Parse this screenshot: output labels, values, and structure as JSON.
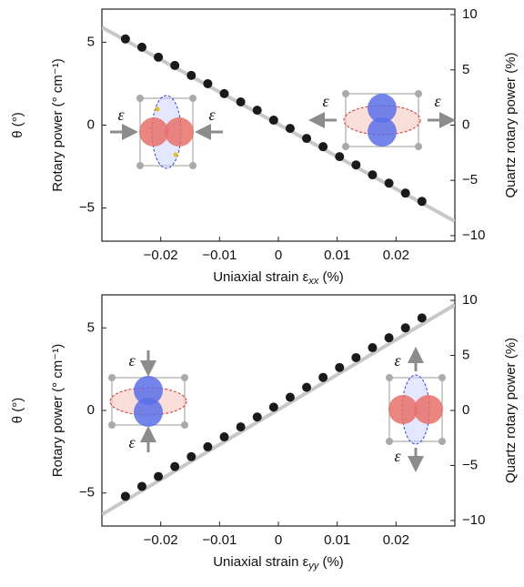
{
  "chart_data": [
    {
      "type": "scatter",
      "xlabel": [
        "Uniaxial strain ε",
        "xx",
        " (%)"
      ],
      "ylabel": "Rotary power (° cm⁻¹)",
      "y2label": "Quartz rotary power (%)",
      "outer_ylabel": "θ (°)",
      "annotations": [
        "ε",
        "ε",
        "ε",
        "ε"
      ],
      "color": "#1a1a1a",
      "x": [
        -0.026,
        -0.0232,
        -0.0204,
        -0.0176,
        -0.0148,
        -0.012,
        -0.0092,
        -0.0064,
        -0.0036,
        -0.0008,
        0.002,
        0.0048,
        0.0076,
        0.0104,
        0.0132,
        0.016,
        0.0188,
        0.0216,
        0.0244
      ],
      "values": [
        5.2,
        4.7,
        4.1,
        3.6,
        3.0,
        2.5,
        1.9,
        1.4,
        0.9,
        0.3,
        -0.2,
        -0.8,
        -1.3,
        -1.9,
        -2.4,
        -3.0,
        -3.5,
        -4.1,
        -4.6
      ],
      "fit": {
        "color": "#c8c8c8",
        "x": [
          -0.03,
          0.03
        ],
        "values": [
          5.9,
          -5.8
        ]
      },
      "xlim": [
        -0.03,
        0.03
      ],
      "xticks": [
        {
          "value": -0.02,
          "label": "−0.02"
        },
        {
          "value": -0.01,
          "label": "−0.01"
        },
        0,
        0.01,
        0.02
      ],
      "ylim": [
        -7,
        7
      ],
      "yticks": [
        {
          "value": -5,
          "label": "−5"
        },
        0,
        5
      ],
      "y2lim": [
        -10.5,
        10.5
      ],
      "y2ticks": [
        {
          "value": -10,
          "label": "−10"
        },
        {
          "value": -5,
          "label": "−5"
        },
        0,
        5,
        10
      ]
    },
    {
      "type": "scatter",
      "xlabel": [
        "Uniaxial strain ε",
        "yy",
        " (%)"
      ],
      "ylabel": "Rotary power (° cm⁻¹)",
      "y2label": "Quartz rotary power (%)",
      "outer_ylabel": "θ (°)",
      "annotations": [
        "ε",
        "ε",
        "ε",
        "ε"
      ],
      "color": "#1a1a1a",
      "x": [
        -0.026,
        -0.0232,
        -0.0204,
        -0.0176,
        -0.0148,
        -0.012,
        -0.0092,
        -0.0064,
        -0.0036,
        -0.0008,
        0.002,
        0.0048,
        0.0076,
        0.0104,
        0.0132,
        0.016,
        0.0188,
        0.0216,
        0.0244
      ],
      "values": [
        -5.2,
        -4.6,
        -4.0,
        -3.4,
        -2.8,
        -2.2,
        -1.6,
        -1.0,
        -0.4,
        0.2,
        0.8,
        1.4,
        2.0,
        2.6,
        3.2,
        3.8,
        4.4,
        5.0,
        5.6
      ],
      "fit": {
        "color": "#c8c8c8",
        "x": [
          -0.03,
          0.03
        ],
        "values": [
          -6.3,
          6.4
        ]
      },
      "xlim": [
        -0.03,
        0.03
      ],
      "xticks": [
        {
          "value": -0.02,
          "label": "−0.02"
        },
        {
          "value": -0.01,
          "label": "−0.01"
        },
        0,
        0.01,
        0.02
      ],
      "ylim": [
        -7,
        7
      ],
      "yticks": [
        {
          "value": -5,
          "label": "−5"
        },
        0,
        5
      ],
      "y2lim": [
        -10.5,
        10.5
      ],
      "y2ticks": [
        {
          "value": -10,
          "label": "−10"
        },
        {
          "value": -5,
          "label": "−5"
        },
        0,
        5,
        10
      ]
    }
  ]
}
